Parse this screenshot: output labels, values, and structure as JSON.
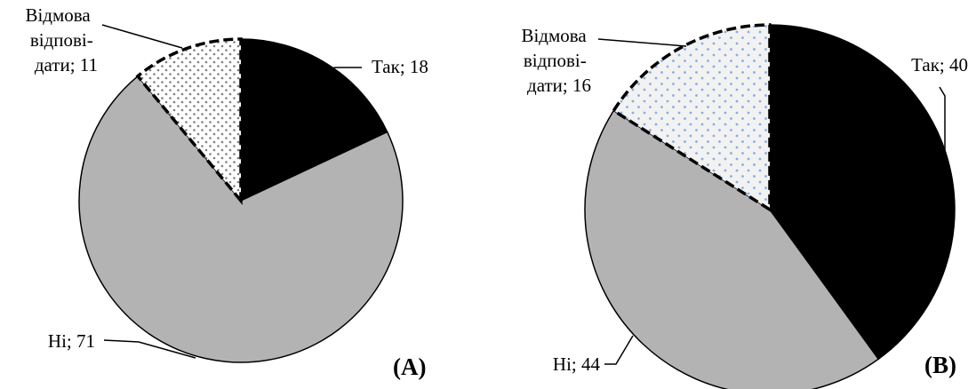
{
  "chart_data": [
    {
      "type": "pie",
      "panel_label": "(A)",
      "start": "12 o'clock",
      "direction": "clockwise",
      "slices": [
        {
          "key": "yes",
          "name": "Так",
          "value": 18,
          "label": [
            "Так; 18"
          ],
          "color": "#000000",
          "fill": "solid"
        },
        {
          "key": "no",
          "name": "Ні",
          "value": 71,
          "label": [
            "Ні; 71"
          ],
          "color": "#b3b3b3",
          "fill": "solid"
        },
        {
          "key": "refusal",
          "name": "Відмова відповідати",
          "value": 11,
          "label": [
            "Відмова",
            "відпові-",
            "дати; 11"
          ],
          "color": "#888888",
          "fill": "dotted",
          "outline": "dashed"
        }
      ]
    },
    {
      "type": "pie",
      "panel_label": "(B)",
      "start": "12 o'clock",
      "direction": "clockwise",
      "slices": [
        {
          "key": "yes",
          "name": "Так",
          "value": 40,
          "label": [
            "Так; 40"
          ],
          "color": "#000000",
          "fill": "solid"
        },
        {
          "key": "no",
          "name": "Ні",
          "value": 44,
          "label": [
            "Ні; 44"
          ],
          "color": "#b3b3b3",
          "fill": "solid"
        },
        {
          "key": "refusal",
          "name": "Відмова відповідати",
          "value": 16,
          "label": [
            "Відмова",
            "відпові-",
            "дати; 16"
          ],
          "color": "#87aee0",
          "fill": "dotted",
          "outline": "dashed"
        }
      ]
    }
  ]
}
